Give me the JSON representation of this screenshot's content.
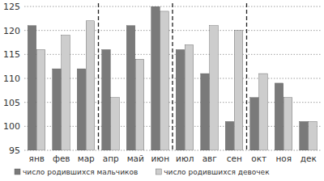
{
  "chart_data": {
    "type": "bar",
    "categories": [
      "янв",
      "фев",
      "мар",
      "апр",
      "май",
      "июн",
      "июл",
      "авг",
      "сен",
      "окт",
      "ноя",
      "дек"
    ],
    "series": [
      {
        "name": "число родившихся мальчиков",
        "color": "#7a7a7a",
        "values": [
          121,
          112,
          112,
          116,
          121,
          125,
          116,
          111,
          101,
          106,
          109,
          101
        ]
      },
      {
        "name": "число родившихся девочек",
        "color": "#cdcdcd",
        "values": [
          116,
          119,
          122,
          106,
          114,
          124,
          117,
          121,
          120,
          111,
          106,
          101
        ]
      }
    ],
    "ylim": [
      95,
      125
    ],
    "yticks": [
      95,
      100,
      105,
      110,
      115,
      120,
      125
    ],
    "grid": true,
    "legend": "bottom"
  }
}
